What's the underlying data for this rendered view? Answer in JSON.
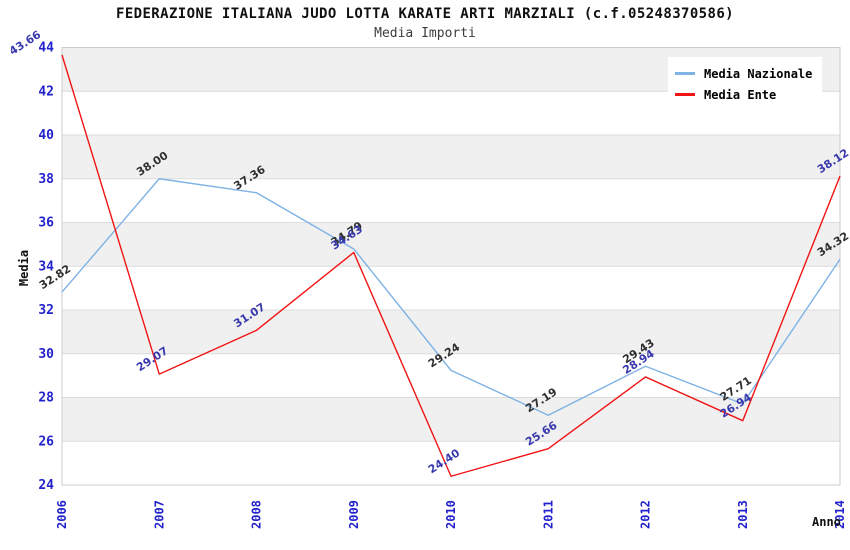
{
  "header": {
    "title": "FEDERAZIONE ITALIANA JUDO LOTTA KARATE ARTI MARZIALI (c.f.05248370586)",
    "subtitle": "Media Importi"
  },
  "chart_data": {
    "type": "line",
    "x": [
      "2006",
      "2007",
      "2008",
      "2009",
      "2010",
      "2011",
      "2012",
      "2013",
      "2014"
    ],
    "xlabel": "Anno",
    "ylabel": "Media",
    "ylim": [
      24,
      44
    ],
    "y_tick_step": 2,
    "grid": "horizontal-bands",
    "legend_position": "top-right",
    "series": [
      {
        "name": "Media Nazionale",
        "color": "#7fb2e5",
        "label_color": "#2f2f2f",
        "values": [
          32.82,
          38.0,
          37.36,
          34.79,
          29.24,
          27.19,
          29.43,
          27.71,
          34.32
        ]
      },
      {
        "name": "Media Ente",
        "color": "#f01414",
        "label_color": "#3838ae",
        "values": [
          43.66,
          29.07,
          31.07,
          34.63,
          24.4,
          25.66,
          28.94,
          26.94,
          38.12
        ]
      }
    ],
    "style": {
      "tick_label_color": "#2222cc",
      "band_color": "#f0f0f0",
      "gridline_color": "#dcdcdc",
      "border_color": "#cccccc"
    }
  }
}
